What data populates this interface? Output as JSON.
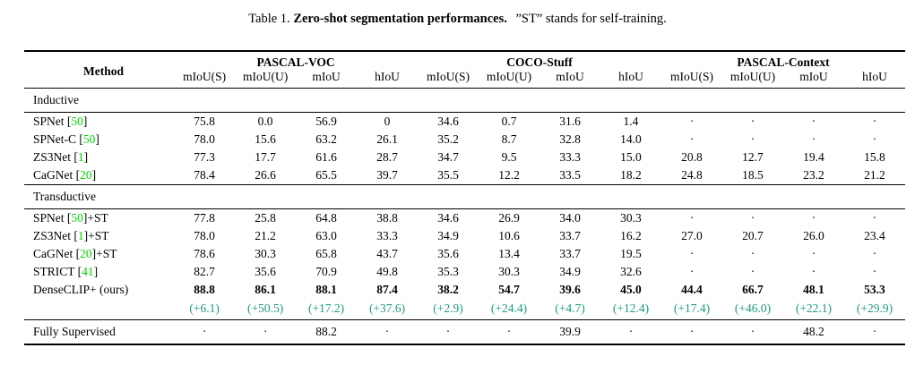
{
  "caption": {
    "label": "Table 1.",
    "title": "Zero-shot segmentation performances.",
    "note": "”ST” stands for self-training."
  },
  "table": {
    "method_header": "Method",
    "colors": {
      "citation_green": "#00d600",
      "delta_green": "#1a9c7b"
    },
    "groups": [
      {
        "label": "PASCAL-VOC",
        "columns": [
          "mIoU(S)",
          "mIoU(U)",
          "mIoU",
          "hIoU"
        ]
      },
      {
        "label": "COCO-Stuff",
        "columns": [
          "mIoU(S)",
          "mIoU(U)",
          "mIoU",
          "hIoU"
        ]
      },
      {
        "label": "PASCAL-Context",
        "columns": [
          "mIoU(S)",
          "mIoU(U)",
          "mIoU",
          "hIoU"
        ]
      }
    ],
    "sections": [
      {
        "label": "Inductive",
        "rows": [
          {
            "method": {
              "pre": "SPNet [",
              "cite": "50",
              "post": "]"
            },
            "bold": false,
            "values": [
              "75.8",
              "0.0",
              "56.9",
              "0",
              "34.6",
              "0.7",
              "31.6",
              "1.4",
              "·",
              "·",
              "·",
              "·"
            ]
          },
          {
            "method": {
              "pre": "SPNet-C [",
              "cite": "50",
              "post": "]"
            },
            "bold": false,
            "values": [
              "78.0",
              "15.6",
              "63.2",
              "26.1",
              "35.2",
              "8.7",
              "32.8",
              "14.0",
              "·",
              "·",
              "·",
              "·"
            ]
          },
          {
            "method": {
              "pre": "ZS3Net [",
              "cite": "1",
              "post": "]"
            },
            "bold": false,
            "values": [
              "77.3",
              "17.7",
              "61.6",
              "28.7",
              "34.7",
              "9.5",
              "33.3",
              "15.0",
              "20.8",
              "12.7",
              "19.4",
              "15.8"
            ]
          },
          {
            "method": {
              "pre": "CaGNet [",
              "cite": "20",
              "post": "]"
            },
            "bold": false,
            "values": [
              "78.4",
              "26.6",
              "65.5",
              "39.7",
              "35.5",
              "12.2",
              "33.5",
              "18.2",
              "24.8",
              "18.5",
              "23.2",
              "21.2"
            ]
          }
        ]
      },
      {
        "label": "Transductive",
        "rows": [
          {
            "method": {
              "pre": "SPNet [",
              "cite": "50",
              "post": "]+ST"
            },
            "bold": false,
            "values": [
              "77.8",
              "25.8",
              "64.8",
              "38.8",
              "34.6",
              "26.9",
              "34.0",
              "30.3",
              "·",
              "·",
              "·",
              "·"
            ]
          },
          {
            "method": {
              "pre": "ZS3Net [",
              "cite": "1",
              "post": "]+ST"
            },
            "bold": false,
            "values": [
              "78.0",
              "21.2",
              "63.0",
              "33.3",
              "34.9",
              "10.6",
              "33.7",
              "16.2",
              "27.0",
              "20.7",
              "26.0",
              "23.4"
            ]
          },
          {
            "method": {
              "pre": "CaGNet [",
              "cite": "20",
              "post": "]+ST"
            },
            "bold": false,
            "values": [
              "78.6",
              "30.3",
              "65.8",
              "43.7",
              "35.6",
              "13.4",
              "33.7",
              "19.5",
              "·",
              "·",
              "·",
              "·"
            ]
          },
          {
            "method": {
              "pre": "STRICT [",
              "cite": "41",
              "post": "]"
            },
            "bold": false,
            "values": [
              "82.7",
              "35.6",
              "70.9",
              "49.8",
              "35.3",
              "30.3",
              "34.9",
              "32.6",
              "·",
              "·",
              "·",
              "·"
            ]
          },
          {
            "method": {
              "pre": "DenseCLIP+ (ours)",
              "cite": null,
              "post": ""
            },
            "bold": true,
            "values": [
              "88.8",
              "86.1",
              "88.1",
              "87.4",
              "38.2",
              "54.7",
              "39.6",
              "45.0",
              "44.4",
              "66.7",
              "48.1",
              "53.3"
            ],
            "deltas": [
              "(+6.1)",
              "(+50.5)",
              "(+17.2)",
              "(+37.6)",
              "(+2.9)",
              "(+24.4)",
              "(+4.7)",
              "(+12.4)",
              "(+17.4)",
              "(+46.0)",
              "(+22.1)",
              "(+29.9)"
            ]
          }
        ]
      }
    ],
    "footer_row": {
      "method": {
        "pre": "Fully Supervised",
        "cite": null,
        "post": ""
      },
      "bold": false,
      "values": [
        "·",
        "·",
        "88.2",
        "·",
        "·",
        "·",
        "39.9",
        "·",
        "·",
        "·",
        "48.2",
        "·"
      ]
    }
  }
}
